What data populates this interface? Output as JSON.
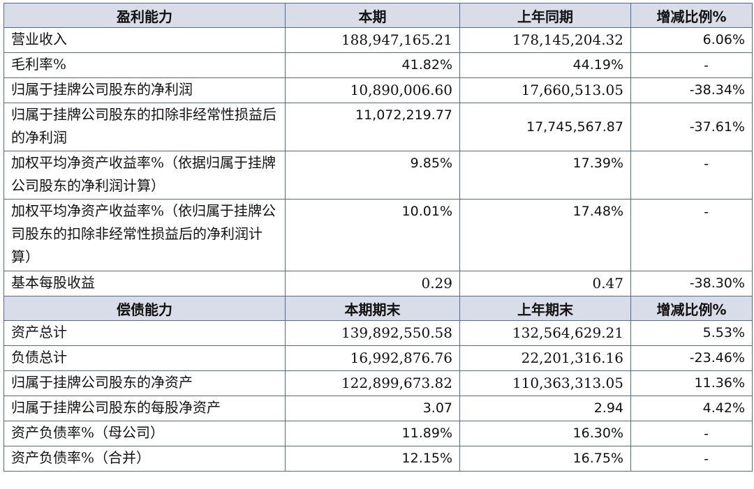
{
  "section1": {
    "headers": [
      "盈利能力",
      "本期",
      "上年同期",
      "增减比例%"
    ],
    "rows": [
      {
        "label": "营业收入",
        "current": "188,947,165.21",
        "prior": "178,145,204.32",
        "change": "6.06%"
      },
      {
        "label": "毛利率%",
        "current": "41.82%",
        "prior": "44.19%",
        "change": "-"
      },
      {
        "label": "归属于挂牌公司股东的净利润",
        "current": "10,890,006.60",
        "prior": "17,660,513.05",
        "change": "-38.34%"
      },
      {
        "label": "归属于挂牌公司股东的扣除非经常性损益后的净利润",
        "current": "11,072,219.77",
        "prior": "17,745,567.87",
        "change": "-37.61%"
      },
      {
        "label": "加权平均净资产收益率%（依据归属于挂牌公司股东的净利润计算）",
        "current": "9.85%",
        "prior": "17.39%",
        "change": "-"
      },
      {
        "label": "加权平均净资产收益率%（依归属于挂牌公司股东的扣除非经常性损益后的净利润计算）",
        "current": "10.01%",
        "prior": "17.48%",
        "change": "-"
      },
      {
        "label": "基本每股收益",
        "current": "0.29",
        "prior": "0.47",
        "change": "-38.30%"
      }
    ]
  },
  "section2": {
    "headers": [
      "偿债能力",
      "本期期末",
      "上年期末",
      "增减比例%"
    ],
    "rows": [
      {
        "label": "资产总计",
        "current": "139,892,550.58",
        "prior": "132,564,629.21",
        "change": "5.53%"
      },
      {
        "label": "负债总计",
        "current": "16,992,876.76",
        "prior": "22,201,316.16",
        "change": "-23.46%"
      },
      {
        "label": "归属于挂牌公司股东的净资产",
        "current": "122,899,673.82",
        "prior": "110,363,313.05",
        "change": "11.36%"
      },
      {
        "label": "归属于挂牌公司股东的每股净资产",
        "current": "3.07",
        "prior": "2.94",
        "change": "4.42%"
      },
      {
        "label": "资产负债率%（母公司）",
        "current": "11.89%",
        "prior": "16.30%",
        "change": "-"
      },
      {
        "label": "资产负债率%（合并）",
        "current": "12.15%",
        "prior": "16.75%",
        "change": "-"
      }
    ]
  }
}
